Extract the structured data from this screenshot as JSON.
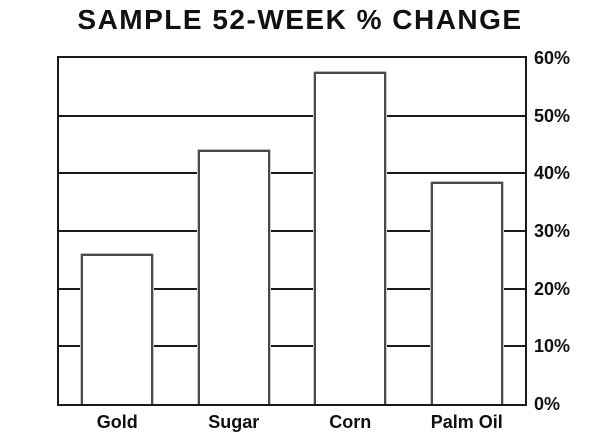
{
  "chart_data": {
    "type": "bar",
    "title": "SAMPLE 52-WEEK % CHANGE",
    "categories": [
      "Gold",
      "Sugar",
      "Corn",
      "Palm Oil"
    ],
    "values": [
      26,
      44,
      57.5,
      38.5
    ],
    "xlabel": "",
    "ylabel": "",
    "ylim": [
      0,
      60
    ],
    "ytick_step": 10,
    "ytick_labels": [
      "0%",
      "10%",
      "20%",
      "30%",
      "40%",
      "50%",
      "60%"
    ],
    "grid": true,
    "yaxis_side": "right",
    "legend": "none",
    "colors": {
      "background": "#ffffff",
      "bar_fill": "#ffffff",
      "bar_border": "#4a4a4a",
      "line_color": "#1a1a1a",
      "text_color": "#111111"
    }
  }
}
